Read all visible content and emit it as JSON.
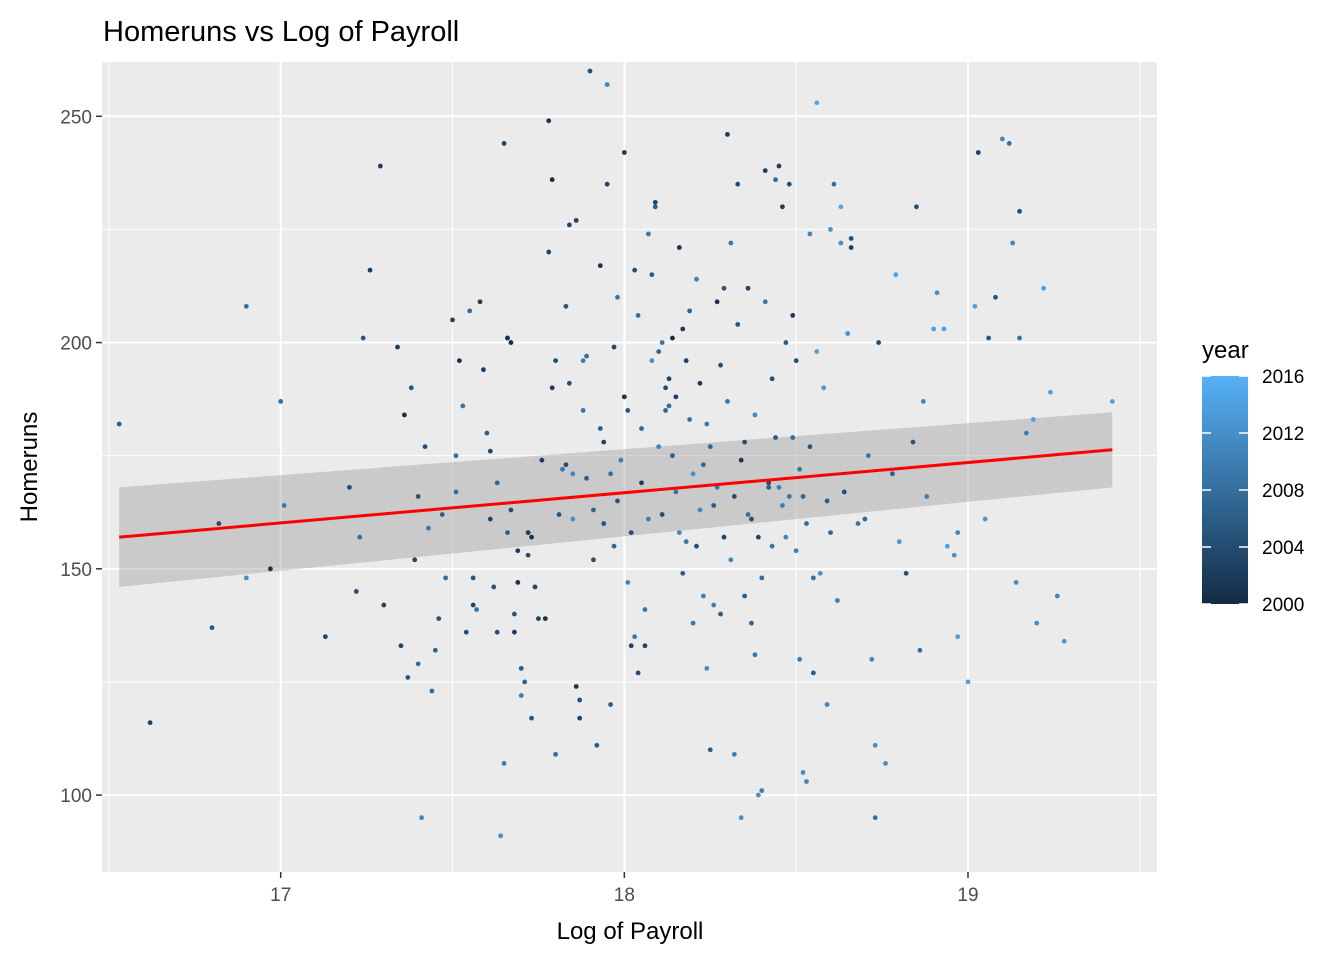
{
  "chart_data": {
    "type": "scatter",
    "title": "Homeruns vs Log of Payroll",
    "xlabel": "Log of Payroll",
    "ylabel": "Homeruns",
    "xlim": [
      16.48,
      19.55
    ],
    "ylim": [
      83,
      262
    ],
    "x_ticks": [
      17,
      18,
      19
    ],
    "x_tick_labels": [
      "17",
      "18",
      "19"
    ],
    "x_minor_ticks": [
      16.5,
      17.5,
      18.5,
      19.5
    ],
    "y_ticks": [
      100,
      150,
      200,
      250
    ],
    "y_tick_labels": [
      "100",
      "150",
      "200",
      "250"
    ],
    "y_minor_ticks": [
      125,
      175,
      225
    ],
    "grid": true,
    "panel_background": "#ebebeb",
    "grid_color": "#ffffff",
    "point_color_low": "#132b43",
    "point_color_high": "#56b1f7",
    "legend": {
      "title": "year",
      "position": "right",
      "min": 2000,
      "max": 2016,
      "breaks": [
        2000,
        2004,
        2008,
        2012,
        2016
      ],
      "labels": [
        "2000",
        "2004",
        "2008",
        "2012",
        "2016"
      ]
    },
    "smooth": {
      "method": "lm",
      "color": "#ff0000",
      "band_color": "#999999",
      "x": [
        16.53,
        19.42
      ],
      "fit": [
        157.0,
        176.3
      ],
      "lower": [
        146.0,
        168.0
      ],
      "upper": [
        168.0,
        184.6
      ]
    },
    "points": [
      [
        16.53,
        182,
        2006
      ],
      [
        16.62,
        116,
        2003
      ],
      [
        16.8,
        137,
        2005
      ],
      [
        16.82,
        160,
        2004
      ],
      [
        16.9,
        148,
        2012
      ],
      [
        16.9,
        208,
        2008
      ],
      [
        16.97,
        150,
        2001
      ],
      [
        17.0,
        187,
        2008
      ],
      [
        17.01,
        164,
        2009
      ],
      [
        17.13,
        135,
        2003
      ],
      [
        17.2,
        168,
        2004
      ],
      [
        17.22,
        145,
        2004
      ],
      [
        17.23,
        157,
        2008
      ],
      [
        17.24,
        201,
        2005
      ],
      [
        17.26,
        216,
        2002
      ],
      [
        17.29,
        239,
        2002
      ],
      [
        17.3,
        142,
        2003
      ],
      [
        17.34,
        199,
        2002
      ],
      [
        17.35,
        133,
        2003
      ],
      [
        17.36,
        184,
        2001
      ],
      [
        17.37,
        126,
        2006
      ],
      [
        17.38,
        190,
        2005
      ],
      [
        17.39,
        152,
        2003
      ],
      [
        17.4,
        166,
        2005
      ],
      [
        17.4,
        129,
        2008
      ],
      [
        17.41,
        95,
        2011
      ],
      [
        17.42,
        177,
        2004
      ],
      [
        17.43,
        159,
        2009
      ],
      [
        17.44,
        123,
        2008
      ],
      [
        17.45,
        132,
        2007
      ],
      [
        17.46,
        139,
        2005
      ],
      [
        17.47,
        162,
        2006
      ],
      [
        17.48,
        148,
        2008
      ],
      [
        17.5,
        205,
        2003
      ],
      [
        17.51,
        167,
        2008
      ],
      [
        17.51,
        175,
        2008
      ],
      [
        17.52,
        196,
        2001
      ],
      [
        17.53,
        186,
        2009
      ],
      [
        17.54,
        136,
        2004
      ],
      [
        17.55,
        207,
        2008
      ],
      [
        17.56,
        142,
        2003
      ],
      [
        17.56,
        148,
        2005
      ],
      [
        17.57,
        141,
        2009
      ],
      [
        17.58,
        209,
        2002
      ],
      [
        17.59,
        194,
        2002
      ],
      [
        17.6,
        180,
        2006
      ],
      [
        17.61,
        176,
        2003
      ],
      [
        17.61,
        161,
        2003
      ],
      [
        17.62,
        146,
        2005
      ],
      [
        17.63,
        136,
        2004
      ],
      [
        17.63,
        169,
        2007
      ],
      [
        17.64,
        91,
        2012
      ],
      [
        17.65,
        244,
        2003
      ],
      [
        17.65,
        107,
        2010
      ],
      [
        17.66,
        201,
        2003
      ],
      [
        17.66,
        158,
        2006
      ],
      [
        17.66,
        201,
        2001
      ],
      [
        17.67,
        200,
        2000
      ],
      [
        17.67,
        163,
        2004
      ],
      [
        17.68,
        140,
        2005
      ],
      [
        17.68,
        136,
        2002
      ],
      [
        17.69,
        154,
        2002
      ],
      [
        17.69,
        147,
        2001
      ],
      [
        17.7,
        128,
        2006
      ],
      [
        17.7,
        122,
        2010
      ],
      [
        17.71,
        125,
        2007
      ],
      [
        17.72,
        158,
        2002
      ],
      [
        17.72,
        153,
        2004
      ],
      [
        17.73,
        157,
        2001
      ],
      [
        17.73,
        117,
        2005
      ],
      [
        17.74,
        146,
        2003
      ],
      [
        17.75,
        139,
        2003
      ],
      [
        17.76,
        174,
        2002
      ],
      [
        17.77,
        139,
        2001
      ],
      [
        17.78,
        220,
        2003
      ],
      [
        17.78,
        249,
        2001
      ],
      [
        17.79,
        190,
        2002
      ],
      [
        17.79,
        236,
        2000
      ],
      [
        17.8,
        109,
        2008
      ],
      [
        17.8,
        196,
        2004
      ],
      [
        17.81,
        162,
        2005
      ],
      [
        17.82,
        172,
        2009
      ],
      [
        17.83,
        208,
        2005
      ],
      [
        17.83,
        173,
        2004
      ],
      [
        17.84,
        226,
        2003
      ],
      [
        17.84,
        191,
        2004
      ],
      [
        17.85,
        171,
        2011
      ],
      [
        17.85,
        161,
        2012
      ],
      [
        17.86,
        227,
        2003
      ],
      [
        17.86,
        124,
        2001
      ],
      [
        17.87,
        121,
        2004
      ],
      [
        17.87,
        117,
        2003
      ],
      [
        17.88,
        185,
        2009
      ],
      [
        17.88,
        196,
        2010
      ],
      [
        17.89,
        197,
        2008
      ],
      [
        17.89,
        170,
        2006
      ],
      [
        17.9,
        260,
        2004
      ],
      [
        17.91,
        163,
        2007
      ],
      [
        17.91,
        152,
        2004
      ],
      [
        17.92,
        111,
        2006
      ],
      [
        17.93,
        181,
        2006
      ],
      [
        17.93,
        217,
        2001
      ],
      [
        17.94,
        160,
        2005
      ],
      [
        17.94,
        178,
        2003
      ],
      [
        17.95,
        235,
        2003
      ],
      [
        17.95,
        257,
        2011
      ],
      [
        17.96,
        171,
        2008
      ],
      [
        17.96,
        120,
        2006
      ],
      [
        17.97,
        155,
        2007
      ],
      [
        17.97,
        199,
        2003
      ],
      [
        17.98,
        210,
        2009
      ],
      [
        17.98,
        165,
        2005
      ],
      [
        17.99,
        174,
        2010
      ],
      [
        18.0,
        242,
        2002
      ],
      [
        18.0,
        188,
        2001
      ],
      [
        18.01,
        147,
        2011
      ],
      [
        18.01,
        185,
        2005
      ],
      [
        18.02,
        133,
        2003
      ],
      [
        18.02,
        158,
        2004
      ],
      [
        18.03,
        216,
        2004
      ],
      [
        18.03,
        135,
        2009
      ],
      [
        18.04,
        206,
        2008
      ],
      [
        18.04,
        127,
        2004
      ],
      [
        18.05,
        169,
        2002
      ],
      [
        18.05,
        181,
        2007
      ],
      [
        18.06,
        133,
        2003
      ],
      [
        18.06,
        141,
        2009
      ],
      [
        18.07,
        224,
        2009
      ],
      [
        18.07,
        161,
        2010
      ],
      [
        18.08,
        196,
        2012
      ],
      [
        18.08,
        215,
        2006
      ],
      [
        18.09,
        230,
        2006
      ],
      [
        18.09,
        231,
        2003
      ],
      [
        18.1,
        177,
        2011
      ],
      [
        18.1,
        198,
        2007
      ],
      [
        18.11,
        162,
        2004
      ],
      [
        18.11,
        200,
        2009
      ],
      [
        18.12,
        185,
        2007
      ],
      [
        18.12,
        190,
        2004
      ],
      [
        18.13,
        192,
        2003
      ],
      [
        18.13,
        186,
        2008
      ],
      [
        18.14,
        201,
        2000
      ],
      [
        18.14,
        175,
        2006
      ],
      [
        18.15,
        167,
        2009
      ],
      [
        18.15,
        188,
        2002
      ],
      [
        18.16,
        221,
        2001
      ],
      [
        18.16,
        158,
        2011
      ],
      [
        18.17,
        149,
        2006
      ],
      [
        18.17,
        203,
        2002
      ],
      [
        18.18,
        196,
        2003
      ],
      [
        18.18,
        156,
        2009
      ],
      [
        18.19,
        183,
        2008
      ],
      [
        18.19,
        207,
        2007
      ],
      [
        18.2,
        171,
        2012
      ],
      [
        18.2,
        138,
        2009
      ],
      [
        18.21,
        214,
        2010
      ],
      [
        18.21,
        155,
        2004
      ],
      [
        18.22,
        163,
        2011
      ],
      [
        18.22,
        191,
        2002
      ],
      [
        18.23,
        173,
        2007
      ],
      [
        18.23,
        144,
        2010
      ],
      [
        18.24,
        182,
        2009
      ],
      [
        18.24,
        128,
        2012
      ],
      [
        18.25,
        177,
        2007
      ],
      [
        18.25,
        110,
        2006
      ],
      [
        18.26,
        164,
        2006
      ],
      [
        18.26,
        142,
        2010
      ],
      [
        18.27,
        209,
        2001
      ],
      [
        18.27,
        168,
        2009
      ],
      [
        18.28,
        140,
        2006
      ],
      [
        18.28,
        195,
        2004
      ],
      [
        18.29,
        157,
        2003
      ],
      [
        18.29,
        212,
        2005
      ],
      [
        18.3,
        246,
        2002
      ],
      [
        18.3,
        187,
        2009
      ],
      [
        18.31,
        222,
        2009
      ],
      [
        18.31,
        152,
        2011
      ],
      [
        18.32,
        166,
        2004
      ],
      [
        18.32,
        109,
        2010
      ],
      [
        18.33,
        235,
        2004
      ],
      [
        18.33,
        204,
        2005
      ],
      [
        18.34,
        174,
        2001
      ],
      [
        18.34,
        95,
        2012
      ],
      [
        18.35,
        178,
        2004
      ],
      [
        18.35,
        144,
        2006
      ],
      [
        18.36,
        212,
        2003
      ],
      [
        18.36,
        162,
        2008
      ],
      [
        18.37,
        161,
        2004
      ],
      [
        18.37,
        138,
        2007
      ],
      [
        18.38,
        131,
        2009
      ],
      [
        18.38,
        184,
        2011
      ],
      [
        18.39,
        157,
        2003
      ],
      [
        18.39,
        100,
        2012
      ],
      [
        18.4,
        148,
        2008
      ],
      [
        18.4,
        101,
        2010
      ],
      [
        18.41,
        209,
        2009
      ],
      [
        18.41,
        238,
        2002
      ],
      [
        18.42,
        169,
        2004
      ],
      [
        18.42,
        168,
        2006
      ],
      [
        18.43,
        192,
        2004
      ],
      [
        18.43,
        155,
        2009
      ],
      [
        18.44,
        236,
        2007
      ],
      [
        18.44,
        179,
        2006
      ],
      [
        18.45,
        168,
        2010
      ],
      [
        18.45,
        239,
        2002
      ],
      [
        18.46,
        164,
        2010
      ],
      [
        18.46,
        230,
        2002
      ],
      [
        18.47,
        200,
        2006
      ],
      [
        18.47,
        157,
        2011
      ],
      [
        18.48,
        235,
        2004
      ],
      [
        18.48,
        166,
        2009
      ],
      [
        18.49,
        206,
        2002
      ],
      [
        18.49,
        179,
        2008
      ],
      [
        18.5,
        196,
        2004
      ],
      [
        18.5,
        154,
        2010
      ],
      [
        18.51,
        172,
        2009
      ],
      [
        18.51,
        130,
        2010
      ],
      [
        18.52,
        105,
        2012
      ],
      [
        18.52,
        166,
        2007
      ],
      [
        18.53,
        160,
        2008
      ],
      [
        18.53,
        103,
        2011
      ],
      [
        18.54,
        224,
        2011
      ],
      [
        18.54,
        177,
        2005
      ],
      [
        18.55,
        148,
        2008
      ],
      [
        18.55,
        127,
        2006
      ],
      [
        18.56,
        253,
        2015
      ],
      [
        18.56,
        198,
        2014
      ],
      [
        18.57,
        149,
        2012
      ],
      [
        18.58,
        190,
        2013
      ],
      [
        18.59,
        120,
        2011
      ],
      [
        18.59,
        165,
        2006
      ],
      [
        18.6,
        225,
        2013
      ],
      [
        18.6,
        158,
        2007
      ],
      [
        18.61,
        235,
        2008
      ],
      [
        18.62,
        143,
        2010
      ],
      [
        18.63,
        230,
        2015
      ],
      [
        18.63,
        222,
        2012
      ],
      [
        18.64,
        167,
        2004
      ],
      [
        18.65,
        202,
        2012
      ],
      [
        18.66,
        223,
        2004
      ],
      [
        18.66,
        221,
        2002
      ],
      [
        18.68,
        160,
        2009
      ],
      [
        18.7,
        161,
        2007
      ],
      [
        18.71,
        175,
        2009
      ],
      [
        18.72,
        130,
        2011
      ],
      [
        18.73,
        95,
        2008
      ],
      [
        18.73,
        111,
        2012
      ],
      [
        18.74,
        200,
        2004
      ],
      [
        18.76,
        107,
        2012
      ],
      [
        18.78,
        171,
        2006
      ],
      [
        18.79,
        215,
        2014
      ],
      [
        18.8,
        156,
        2013
      ],
      [
        18.82,
        149,
        2004
      ],
      [
        18.84,
        178,
        2005
      ],
      [
        18.85,
        230,
        2004
      ],
      [
        18.86,
        132,
        2008
      ],
      [
        18.87,
        187,
        2011
      ],
      [
        18.88,
        166,
        2010
      ],
      [
        18.9,
        203,
        2014
      ],
      [
        18.91,
        211,
        2012
      ],
      [
        18.93,
        203,
        2014
      ],
      [
        18.94,
        155,
        2014
      ],
      [
        18.96,
        153,
        2012
      ],
      [
        18.97,
        158,
        2011
      ],
      [
        18.97,
        135,
        2014
      ],
      [
        19.0,
        125,
        2014
      ],
      [
        19.02,
        208,
        2014
      ],
      [
        19.03,
        242,
        2003
      ],
      [
        19.05,
        161,
        2013
      ],
      [
        19.06,
        201,
        2005
      ],
      [
        19.08,
        210,
        2005
      ],
      [
        19.1,
        245,
        2011
      ],
      [
        19.12,
        244,
        2008
      ],
      [
        19.13,
        222,
        2011
      ],
      [
        19.14,
        147,
        2012
      ],
      [
        19.15,
        229,
        2004
      ],
      [
        19.15,
        201,
        2008
      ],
      [
        19.17,
        180,
        2010
      ],
      [
        19.19,
        183,
        2014
      ],
      [
        19.2,
        138,
        2012
      ],
      [
        19.22,
        212,
        2014
      ],
      [
        19.24,
        189,
        2014
      ],
      [
        19.26,
        144,
        2011
      ],
      [
        19.28,
        134,
        2013
      ],
      [
        19.42,
        187,
        2014
      ]
    ]
  }
}
